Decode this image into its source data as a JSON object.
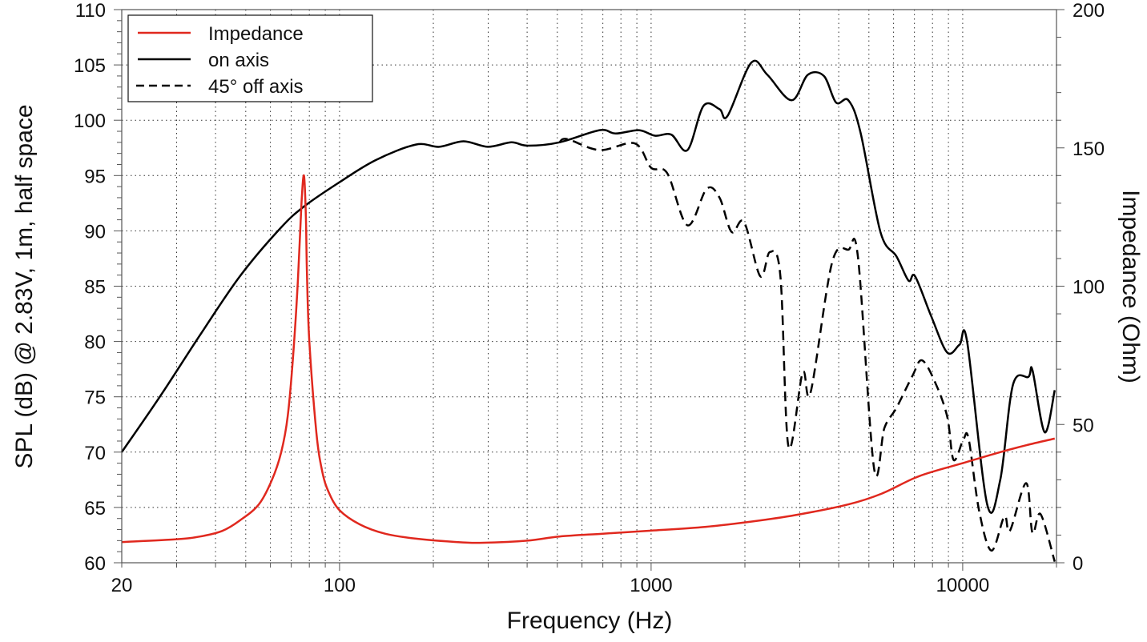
{
  "chart_data": {
    "type": "line",
    "xlabel": "Frequency (Hz)",
    "ylabel": "SPL (dB) @ 2.83V, 1m, half space",
    "y2label": "Impedance (Ohm)",
    "xscale": "log",
    "xlim": [
      20,
      20000
    ],
    "ylim": [
      60,
      110
    ],
    "y2lim": [
      0,
      200
    ],
    "grid": true,
    "legend_placement": "top-left",
    "xticks": [
      "20",
      "100",
      "1000",
      "10000"
    ],
    "xtick_values": [
      20,
      100,
      1000,
      10000
    ],
    "yticks": [
      "60",
      "65",
      "70",
      "75",
      "80",
      "85",
      "90",
      "95",
      "100",
      "105",
      "110"
    ],
    "y2ticks": [
      "0",
      "50",
      "100",
      "150",
      "200"
    ],
    "series": [
      {
        "name": "Impedance",
        "axis": "right",
        "color": "#e0281e",
        "style": "solid",
        "x": [
          20,
          30,
          35.7,
          42,
          47.9,
          55,
          60.6,
          65,
          68.2,
          71,
          73.5,
          75.5,
          76.9,
          78,
          78.6,
          80,
          84.3,
          88,
          92.3,
          100,
          116,
          140,
          176,
          230,
          282,
          400,
          508,
          700,
          1000,
          1500,
          2240,
          3000,
          4296,
          5500,
          7240,
          10000,
          13200,
          16000,
          19740
        ],
        "y": [
          7.5,
          8.5,
          9.5,
          11.5,
          15.3,
          21,
          29.8,
          40,
          53,
          75,
          102,
          130,
          140,
          125,
          105,
          80,
          47,
          33,
          25.5,
          19,
          13.9,
          10.5,
          8.7,
          7.6,
          7.2,
          8,
          9.5,
          10.5,
          11.6,
          13,
          15.3,
          17.5,
          21.1,
          25,
          31.3,
          36,
          40,
          42.5,
          44.9
        ]
      },
      {
        "name": "on axis",
        "axis": "left",
        "color": "#000000",
        "style": "solid",
        "x": [
          20,
          26.5,
          35.7,
          47.9,
          64.4,
          76.9,
          100,
          130.7,
          175.7,
          209,
          250,
          299,
          356,
          402,
          508,
          683,
          769,
          914,
          1029,
          1161,
          1308,
          1473,
          1658,
          1760,
          2097,
          2362,
          2823,
          3183,
          3586,
          3922,
          4296,
          4700,
          5446,
          6128,
          6703,
          7030,
          7920,
          8920,
          9766,
          10330,
          11980,
          13200,
          14500,
          16260,
          16750,
          18320,
          19740
        ],
        "y": [
          70.0,
          75.0,
          80.6,
          85.9,
          90.2,
          92.2,
          94.4,
          96.4,
          97.8,
          97.6,
          98.1,
          97.6,
          98.0,
          97.7,
          98.0,
          99.1,
          98.8,
          99.1,
          98.6,
          98.7,
          97.3,
          101.3,
          101.0,
          100.4,
          105.2,
          104.1,
          101.8,
          104.1,
          104.0,
          101.6,
          101.8,
          98.9,
          89.9,
          87.7,
          85.5,
          85.9,
          82.3,
          79.0,
          79.7,
          80.0,
          65.3,
          67.5,
          76.1,
          76.8,
          77.4,
          71.8,
          75.6
        ]
      },
      {
        "name": "45° off axis",
        "axis": "left",
        "color": "#000000",
        "style": "dashed",
        "x": [
          508,
          538,
          683,
          887,
          1000,
          1127,
          1308,
          1508,
          1658,
          1813,
          1987,
          2240,
          2406,
          2600,
          2760,
          3065,
          3250,
          3805,
          4296,
          4613,
          5195,
          5610,
          6128,
          6900,
          7400,
          8160,
          8920,
          9350,
          10040,
          10450,
          11290,
          12370,
          13610,
          14180,
          15980,
          16750,
          17780,
          19740
        ],
        "y": [
          98.0,
          98.3,
          97.3,
          97.9,
          95.7,
          95.2,
          90.5,
          93.8,
          93.0,
          89.9,
          90.8,
          85.9,
          88.1,
          85.9,
          70.5,
          77.2,
          75.4,
          87.1,
          88.3,
          87.6,
          68.5,
          72.2,
          74.0,
          76.9,
          78.3,
          76.3,
          73.2,
          69.3,
          71.1,
          71.2,
          64.7,
          61.1,
          64.2,
          62.9,
          67.2,
          62.7,
          64.4,
          60.1
        ]
      }
    ]
  }
}
